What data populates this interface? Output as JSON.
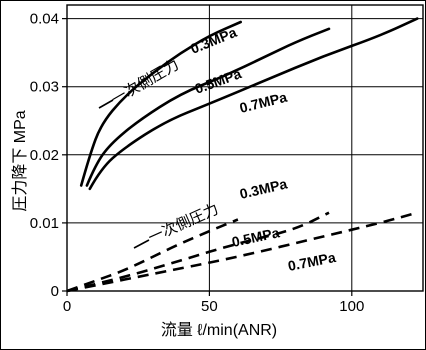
{
  "chart_data": {
    "type": "line",
    "xlabel": "流量 ℓ/min(ANR)",
    "ylabel": "圧力降下 MPa",
    "xlim": [
      0,
      125
    ],
    "ylim": [
      0,
      0.042
    ],
    "x_ticks": [
      "0",
      "50",
      "100"
    ],
    "y_ticks": [
      "0",
      "0.01",
      "0.02",
      "0.03",
      "0.04"
    ],
    "group_labels": [
      "一次側圧力",
      "一次側圧力"
    ],
    "series": [
      {
        "name": "0.3MPa",
        "style": "solid",
        "points": [
          [
            5,
            0.0155
          ],
          [
            8,
            0.02
          ],
          [
            12,
            0.0245
          ],
          [
            20,
            0.0285
          ],
          [
            30,
            0.032
          ],
          [
            40,
            0.035
          ],
          [
            50,
            0.0375
          ],
          [
            61,
            0.0395
          ]
        ]
      },
      {
        "name": "0.5MPa",
        "style": "solid",
        "points": [
          [
            7,
            0.0155
          ],
          [
            10,
            0.0185
          ],
          [
            15,
            0.0215
          ],
          [
            25,
            0.025
          ],
          [
            40,
            0.029
          ],
          [
            55,
            0.0315
          ],
          [
            70,
            0.0345
          ],
          [
            80,
            0.0365
          ],
          [
            92,
            0.0385
          ]
        ]
      },
      {
        "name": "0.7MPa",
        "style": "solid",
        "points": [
          [
            8,
            0.015
          ],
          [
            12,
            0.018
          ],
          [
            20,
            0.021
          ],
          [
            35,
            0.025
          ],
          [
            50,
            0.0275
          ],
          [
            70,
            0.031
          ],
          [
            90,
            0.0345
          ],
          [
            110,
            0.0375
          ],
          [
            123,
            0.04
          ]
        ]
      },
      {
        "name": "0.3MPa",
        "style": "dashed",
        "points": [
          [
            0,
            0
          ],
          [
            10,
            0.0015
          ],
          [
            20,
            0.003
          ],
          [
            30,
            0.005
          ],
          [
            40,
            0.007
          ],
          [
            50,
            0.0088
          ],
          [
            60,
            0.0105
          ]
        ]
      },
      {
        "name": "0.5MPa",
        "style": "dashed",
        "points": [
          [
            0,
            0
          ],
          [
            20,
            0.002
          ],
          [
            40,
            0.0045
          ],
          [
            60,
            0.007
          ],
          [
            80,
            0.009
          ],
          [
            92,
            0.0115
          ]
        ]
      },
      {
        "name": "0.7MPa",
        "style": "dashed",
        "points": [
          [
            0,
            0
          ],
          [
            30,
            0.0025
          ],
          [
            60,
            0.005
          ],
          [
            90,
            0.008
          ],
          [
            110,
            0.01
          ],
          [
            123,
            0.0115
          ]
        ]
      }
    ]
  }
}
